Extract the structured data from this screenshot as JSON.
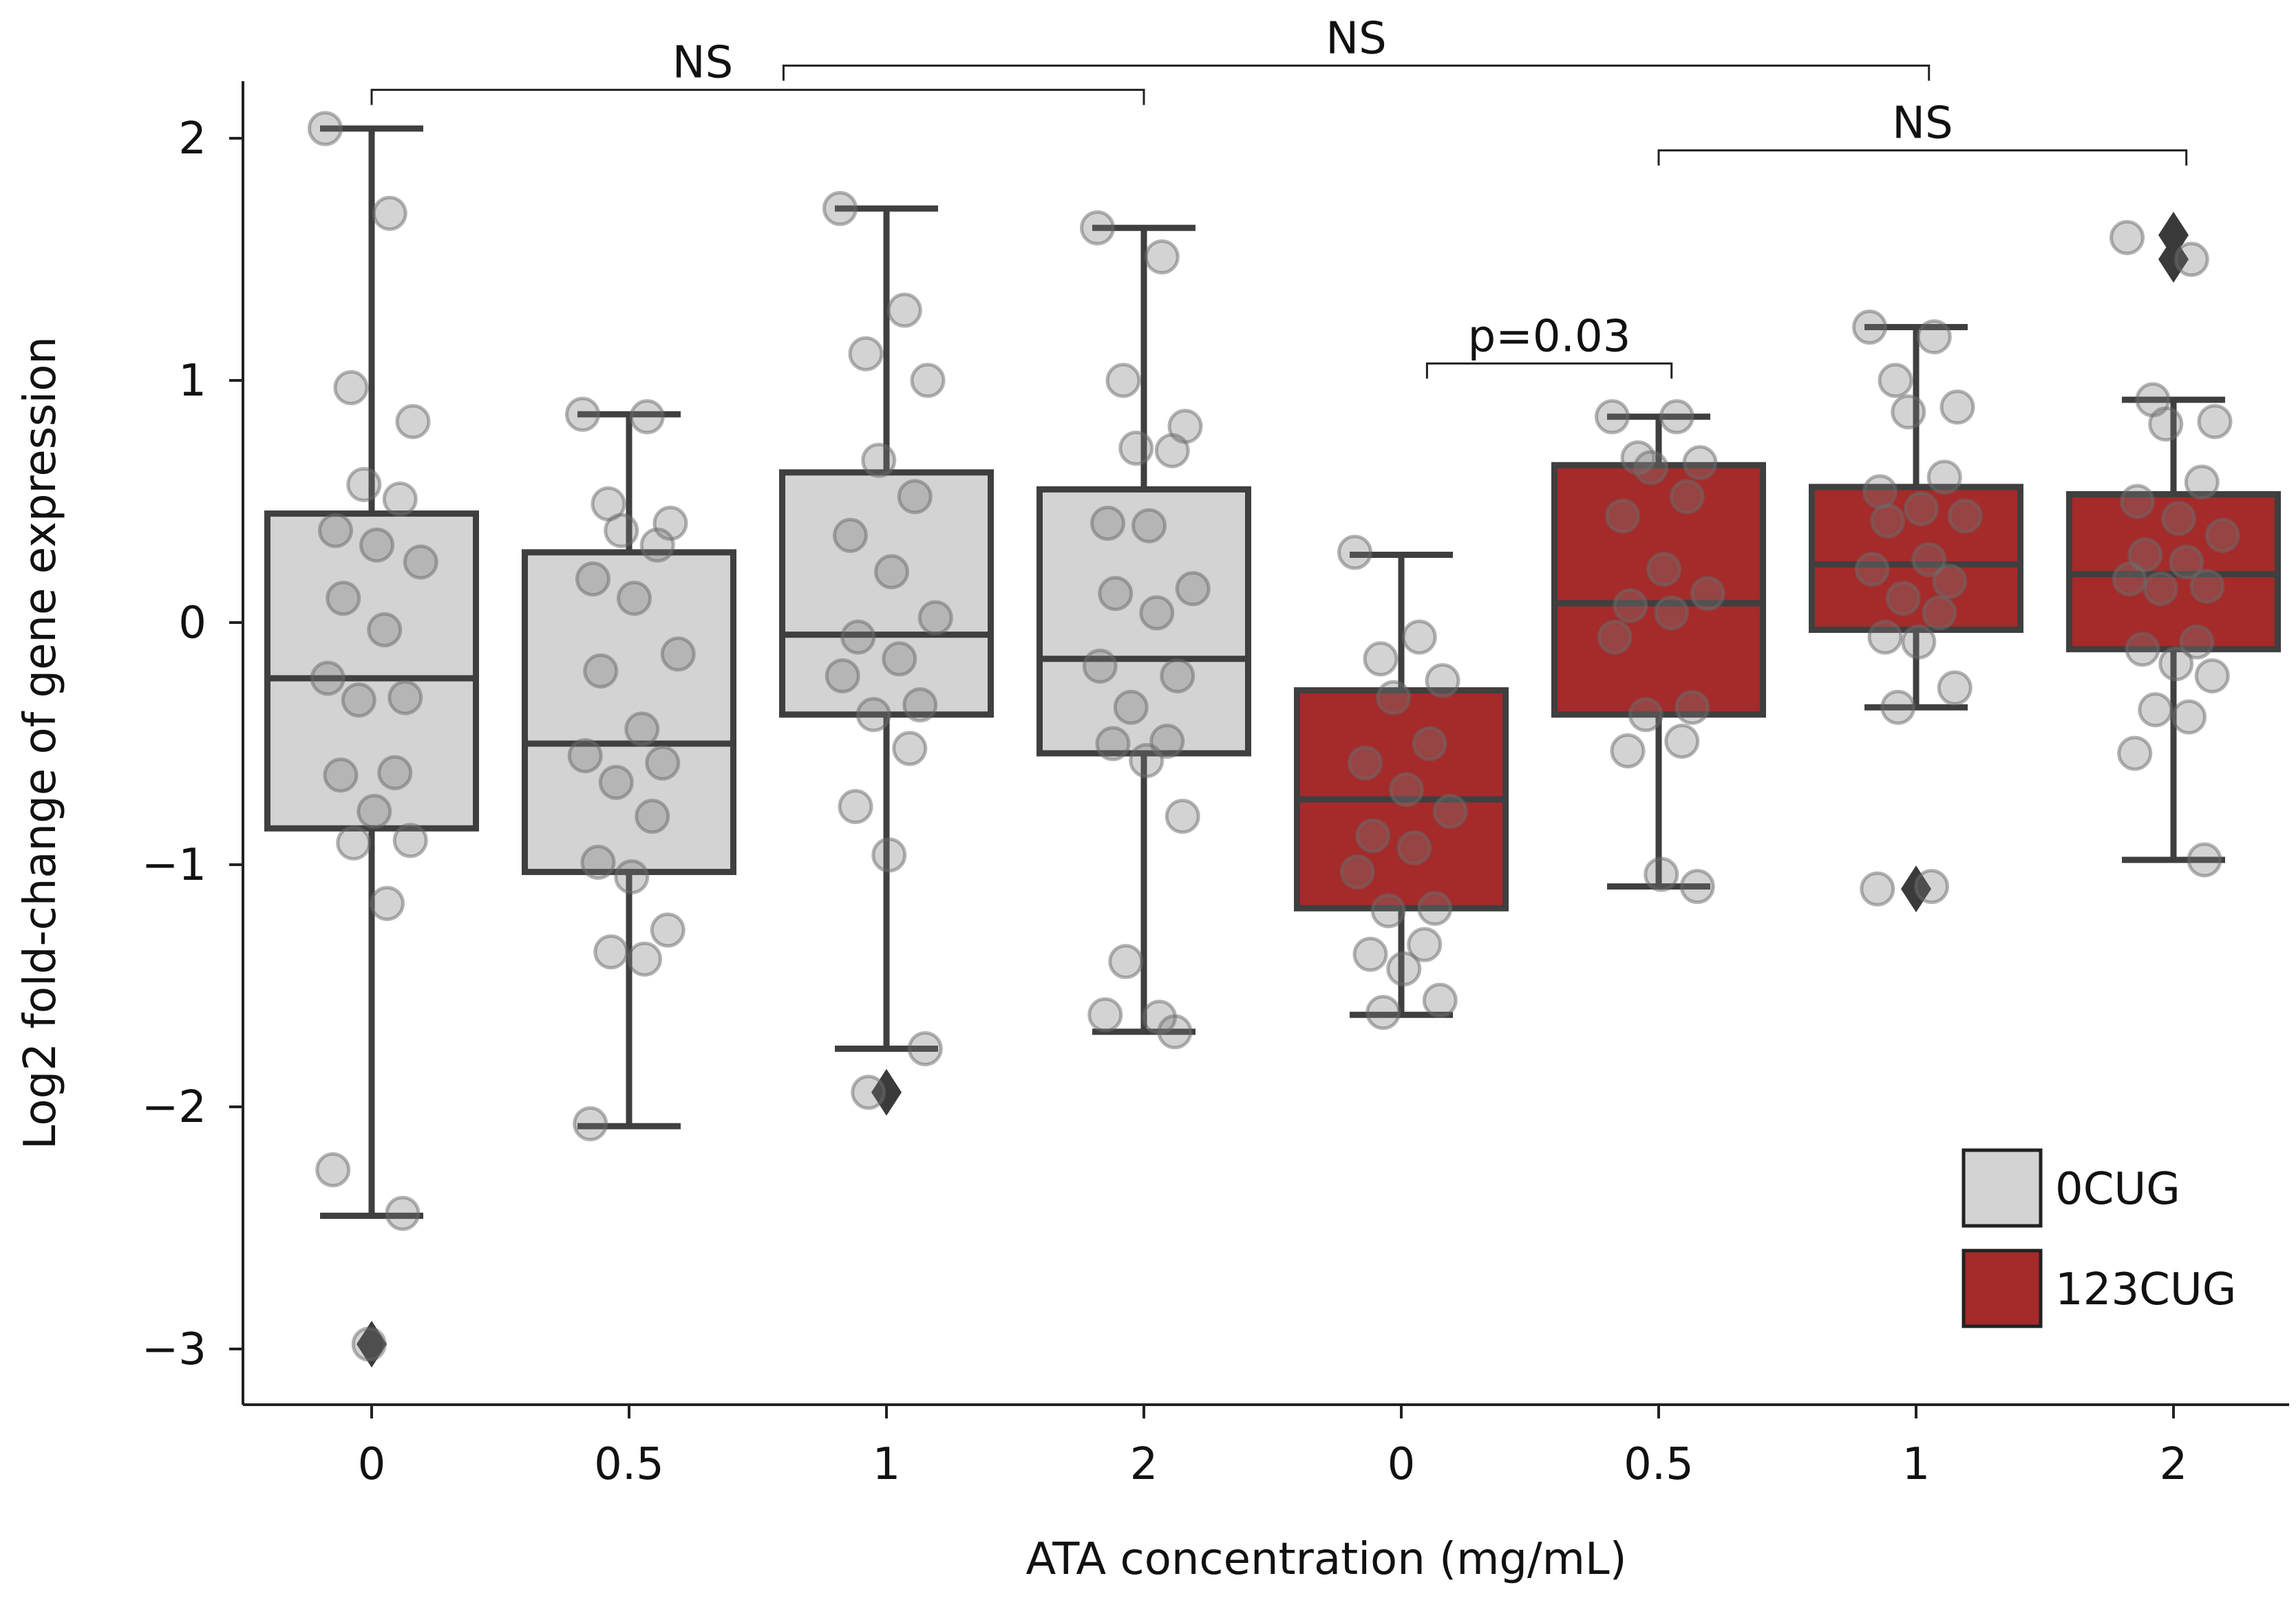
{
  "chart_data": {
    "type": "box",
    "xlabel": "ATA concentration (mg/mL)",
    "ylabel": "Log2 fold-change of gene expression",
    "ylim": [
      -3.2,
      2.2
    ],
    "yticks": [
      "2",
      "1",
      "0",
      "−1",
      "−2",
      "−3"
    ],
    "ytick_values": [
      2,
      1,
      0,
      -1,
      -2,
      -3
    ],
    "categories": [
      "0",
      "0.5",
      "1",
      "2",
      "0",
      "0.5",
      "1",
      "2"
    ],
    "legend": [
      {
        "label": "0CUG",
        "color": "#d3d3d3"
      },
      {
        "label": "123CUG",
        "color": "#a52a2a"
      }
    ],
    "boxes": [
      {
        "group": "0CUG",
        "x": "0",
        "q1": -0.85,
        "median": -0.23,
        "q3": 0.45,
        "whisker_low": -2.45,
        "whisker_high": 2.04,
        "outliers": [
          -2.98
        ],
        "points": [
          2.04,
          1.69,
          0.97,
          0.83,
          0.57,
          0.51,
          0.38,
          0.32,
          0.25,
          0.1,
          -0.03,
          -0.23,
          -0.31,
          -0.32,
          -0.62,
          -0.63,
          -0.78,
          -0.9,
          -0.91,
          -1.16,
          -2.26,
          -2.44,
          -2.98
        ]
      },
      {
        "group": "0CUG",
        "x": "0.5",
        "q1": -1.03,
        "median": -0.5,
        "q3": 0.29,
        "whisker_low": -2.08,
        "whisker_high": 0.86,
        "outliers": [],
        "points": [
          0.86,
          0.85,
          0.49,
          0.41,
          0.38,
          0.32,
          0.18,
          0.1,
          -0.13,
          -0.2,
          -0.44,
          -0.55,
          -0.58,
          -0.66,
          -0.8,
          -0.99,
          -1.05,
          -1.27,
          -1.36,
          -1.39,
          -2.07
        ]
      },
      {
        "group": "0CUG",
        "x": "1",
        "q1": -0.38,
        "median": -0.05,
        "q3": 0.62,
        "whisker_low": -1.76,
        "whisker_high": 1.71,
        "outliers": [
          -1.94
        ],
        "points": [
          1.71,
          1.29,
          1.11,
          1.0,
          0.67,
          0.52,
          0.36,
          0.21,
          0.02,
          -0.06,
          -0.15,
          -0.22,
          -0.34,
          -0.38,
          -0.52,
          -0.76,
          -0.96,
          -1.76,
          -1.94
        ]
      },
      {
        "group": "0CUG",
        "x": "2",
        "q1": -0.54,
        "median": -0.15,
        "q3": 0.55,
        "whisker_low": -1.69,
        "whisker_high": 1.63,
        "outliers": [],
        "points": [
          1.63,
          1.51,
          1.0,
          0.81,
          0.72,
          0.71,
          0.41,
          0.4,
          0.14,
          0.12,
          0.04,
          -0.18,
          -0.22,
          -0.35,
          -0.49,
          -0.5,
          -0.57,
          -0.8,
          -1.4,
          -1.63,
          -1.62,
          -1.69
        ]
      },
      {
        "group": "123CUG",
        "x": "0",
        "q1": -1.18,
        "median": -0.73,
        "q3": -0.28,
        "whisker_low": -1.62,
        "whisker_high": 0.28,
        "outliers": [],
        "points": [
          0.29,
          -0.06,
          -0.15,
          -0.24,
          -0.31,
          -0.5,
          -0.58,
          -0.69,
          -0.78,
          -0.88,
          -0.93,
          -1.03,
          -1.18,
          -1.19,
          -1.33,
          -1.37,
          -1.43,
          -1.56,
          -1.61
        ]
      },
      {
        "group": "123CUG",
        "x": "0.5",
        "q1": -0.38,
        "median": 0.08,
        "q3": 0.65,
        "whisker_low": -1.09,
        "whisker_high": 0.85,
        "outliers": [],
        "points": [
          0.85,
          0.85,
          0.68,
          0.66,
          0.64,
          0.52,
          0.44,
          0.22,
          0.12,
          0.07,
          0.04,
          -0.06,
          -0.35,
          -0.38,
          -0.49,
          -0.53,
          -1.04,
          -1.09
        ]
      },
      {
        "group": "123CUG",
        "x": "1",
        "q1": -0.03,
        "median": 0.24,
        "q3": 0.56,
        "whisker_low": -0.35,
        "whisker_high": 1.22,
        "outliers": [
          -1.1
        ],
        "points": [
          1.22,
          1.18,
          1.0,
          0.89,
          0.87,
          0.6,
          0.54,
          0.47,
          0.44,
          0.42,
          0.26,
          0.22,
          0.17,
          0.1,
          0.04,
          -0.06,
          -0.08,
          -0.27,
          -0.35,
          -1.09,
          -1.1
        ]
      },
      {
        "group": "123CUG",
        "x": "2",
        "q1": -0.11,
        "median": 0.2,
        "q3": 0.53,
        "whisker_low": -0.98,
        "whisker_high": 0.92,
        "outliers": [
          1.6,
          1.5
        ],
        "points": [
          1.59,
          1.5,
          0.92,
          0.83,
          0.82,
          0.58,
          0.5,
          0.43,
          0.36,
          0.28,
          0.25,
          0.18,
          0.15,
          0.14,
          -0.08,
          -0.11,
          -0.17,
          -0.22,
          -0.36,
          -0.39,
          -0.54,
          -0.98
        ]
      }
    ],
    "annotations": [
      {
        "from": 0,
        "to": 3,
        "label": "NS",
        "y": 2.2
      },
      {
        "from": 1.6,
        "to": 6.05,
        "label": "NS",
        "y": 2.3
      },
      {
        "from": 5.0,
        "to": 7.05,
        "label": "NS",
        "y": 1.95
      },
      {
        "from": 4.1,
        "to": 5.05,
        "label": "p=0.03",
        "y": 1.07
      }
    ]
  }
}
